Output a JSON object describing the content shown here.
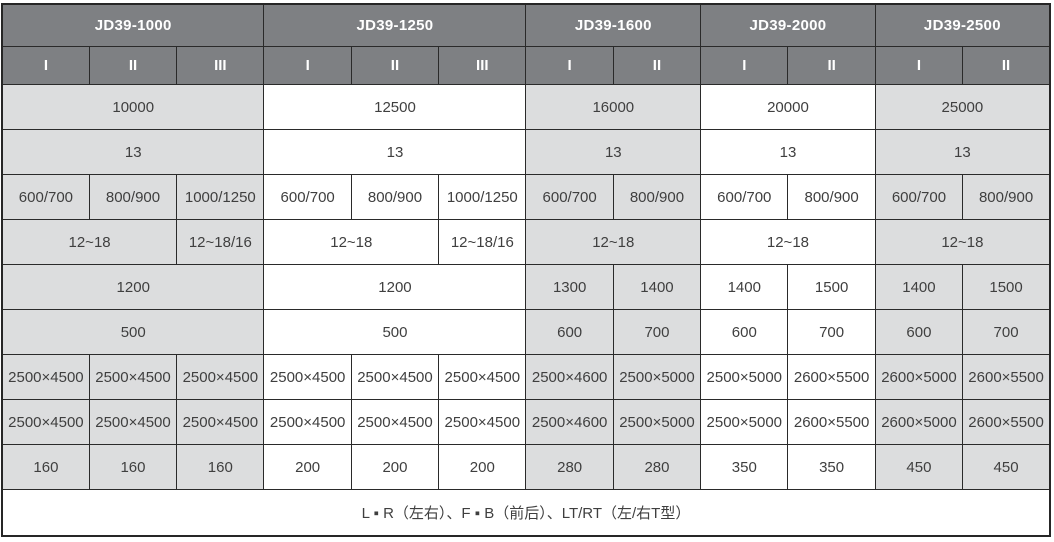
{
  "colors": {
    "header_bg": "#7e8083",
    "header_text": "#ffffff",
    "shade_gray": "#dcddde",
    "shade_white": "#ffffff",
    "border": "#2a2a2a",
    "cell_text": "#3f3f3f"
  },
  "table": {
    "groups": [
      {
        "model": "JD39-1000",
        "variants": [
          "I",
          "II",
          "III"
        ],
        "shade": "gray"
      },
      {
        "model": "JD39-1250",
        "variants": [
          "I",
          "II",
          "III"
        ],
        "shade": "white"
      },
      {
        "model": "JD39-1600",
        "variants": [
          "I",
          "II"
        ],
        "shade": "gray"
      },
      {
        "model": "JD39-2000",
        "variants": [
          "I",
          "II"
        ],
        "shade": "white"
      },
      {
        "model": "JD39-2500",
        "variants": [
          "I",
          "II"
        ],
        "shade": "gray"
      }
    ],
    "rows": [
      {
        "cells": [
          {
            "t": "10000",
            "s": 3
          },
          {
            "t": "12500",
            "s": 3
          },
          {
            "t": "16000",
            "s": 2
          },
          {
            "t": "20000",
            "s": 2
          },
          {
            "t": "25000",
            "s": 2
          }
        ]
      },
      {
        "cells": [
          {
            "t": "13",
            "s": 3
          },
          {
            "t": "13",
            "s": 3
          },
          {
            "t": "13",
            "s": 2
          },
          {
            "t": "13",
            "s": 2
          },
          {
            "t": "13",
            "s": 2
          }
        ]
      },
      {
        "cells": [
          {
            "t": "600/700",
            "s": 1
          },
          {
            "t": "800/900",
            "s": 1
          },
          {
            "t": "1000/1250",
            "s": 1
          },
          {
            "t": "600/700",
            "s": 1
          },
          {
            "t": "800/900",
            "s": 1
          },
          {
            "t": "1000/1250",
            "s": 1
          },
          {
            "t": "600/700",
            "s": 1
          },
          {
            "t": "800/900",
            "s": 1
          },
          {
            "t": "600/700",
            "s": 1
          },
          {
            "t": "800/900",
            "s": 1
          },
          {
            "t": "600/700",
            "s": 1
          },
          {
            "t": "800/900",
            "s": 1
          }
        ]
      },
      {
        "cells": [
          {
            "t": "12~18",
            "s": 2
          },
          {
            "t": "12~18/16",
            "s": 1
          },
          {
            "t": "12~18",
            "s": 2
          },
          {
            "t": "12~18/16",
            "s": 1
          },
          {
            "t": "12~18",
            "s": 2
          },
          {
            "t": "12~18",
            "s": 2
          },
          {
            "t": "12~18",
            "s": 2
          }
        ]
      },
      {
        "cells": [
          {
            "t": "1200",
            "s": 3
          },
          {
            "t": "1200",
            "s": 3
          },
          {
            "t": "1300",
            "s": 1
          },
          {
            "t": "1400",
            "s": 1
          },
          {
            "t": "1400",
            "s": 1
          },
          {
            "t": "1500",
            "s": 1
          },
          {
            "t": "1400",
            "s": 1
          },
          {
            "t": "1500",
            "s": 1
          }
        ]
      },
      {
        "cells": [
          {
            "t": "500",
            "s": 3
          },
          {
            "t": "500",
            "s": 3
          },
          {
            "t": "600",
            "s": 1
          },
          {
            "t": "700",
            "s": 1
          },
          {
            "t": "600",
            "s": 1
          },
          {
            "t": "700",
            "s": 1
          },
          {
            "t": "600",
            "s": 1
          },
          {
            "t": "700",
            "s": 1
          }
        ]
      },
      {
        "cells": [
          {
            "t": "2500×4500",
            "s": 1
          },
          {
            "t": "2500×4500",
            "s": 1
          },
          {
            "t": "2500×4500",
            "s": 1
          },
          {
            "t": "2500×4500",
            "s": 1
          },
          {
            "t": "2500×4500",
            "s": 1
          },
          {
            "t": "2500×4500",
            "s": 1
          },
          {
            "t": "2500×4600",
            "s": 1
          },
          {
            "t": "2500×5000",
            "s": 1
          },
          {
            "t": "2500×5000",
            "s": 1
          },
          {
            "t": "2600×5500",
            "s": 1
          },
          {
            "t": "2600×5000",
            "s": 1
          },
          {
            "t": "2600×5500",
            "s": 1
          }
        ]
      },
      {
        "cells": [
          {
            "t": "2500×4500",
            "s": 1
          },
          {
            "t": "2500×4500",
            "s": 1
          },
          {
            "t": "2500×4500",
            "s": 1
          },
          {
            "t": "2500×4500",
            "s": 1
          },
          {
            "t": "2500×4500",
            "s": 1
          },
          {
            "t": "2500×4500",
            "s": 1
          },
          {
            "t": "2500×4600",
            "s": 1
          },
          {
            "t": "2500×5000",
            "s": 1
          },
          {
            "t": "2500×5000",
            "s": 1
          },
          {
            "t": "2600×5500",
            "s": 1
          },
          {
            "t": "2600×5000",
            "s": 1
          },
          {
            "t": "2600×5500",
            "s": 1
          }
        ]
      },
      {
        "cells": [
          {
            "t": "160",
            "s": 1
          },
          {
            "t": "160",
            "s": 1
          },
          {
            "t": "160",
            "s": 1
          },
          {
            "t": "200",
            "s": 1
          },
          {
            "t": "200",
            "s": 1
          },
          {
            "t": "200",
            "s": 1
          },
          {
            "t": "280",
            "s": 1
          },
          {
            "t": "280",
            "s": 1
          },
          {
            "t": "350",
            "s": 1
          },
          {
            "t": "350",
            "s": 1
          },
          {
            "t": "450",
            "s": 1
          },
          {
            "t": "450",
            "s": 1
          }
        ]
      }
    ],
    "footer": "L ▪ R（左右）、F ▪ B（前后）、LT/RT（左/右T型）"
  }
}
